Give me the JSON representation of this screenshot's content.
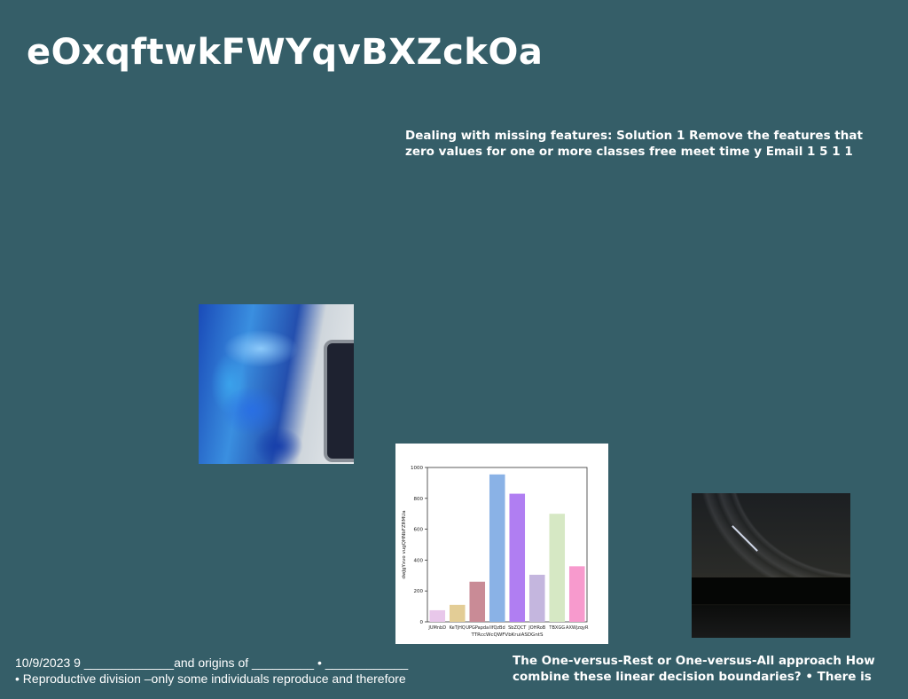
{
  "slide": {
    "title": "eOxqftwkFWYqvBXZckOa",
    "top_text": [
      "Dealing with missing features: Solution 1 Remove the features that",
      "zero values for one or more classes free meet time y Email 1 5 1 1"
    ],
    "bottom_left_text": [
      "10/9/2023 9 _____________and origins of _________ • ____________",
      "• Reproductive division –only some individuals reproduce and therefore"
    ],
    "bottom_right_text": [
      "The One-versus-Rest or One-versus-All approach How",
      "combine these linear decision boundaries? • There is"
    ],
    "background_color": "#355e68"
  },
  "chart_data": {
    "type": "bar",
    "categories": [
      "JUMnbD",
      "KeTjHQ",
      "UPGPapda",
      "IlfQzBd",
      "SbZQCT",
      "JOHRoB",
      "TBXGG",
      "AXWjzqyR"
    ],
    "values": [
      75,
      110,
      260,
      955,
      830,
      305,
      700,
      360
    ],
    "colors": [
      "#e8c7ea",
      "#e3cd96",
      "#c98b96",
      "#8ab2e6",
      "#b07ef2",
      "#c4b6de",
      "#d6e8c4",
      "#f79acd"
    ],
    "xlabel": "TTRccWcQWFVbKruiASDGntS",
    "ylabel": "dwJgYxvo vugQHNbFZRMUa",
    "ylim": [
      0,
      1000
    ],
    "yticks": [
      0,
      200,
      400,
      600,
      800,
      1000
    ],
    "grid": false
  }
}
